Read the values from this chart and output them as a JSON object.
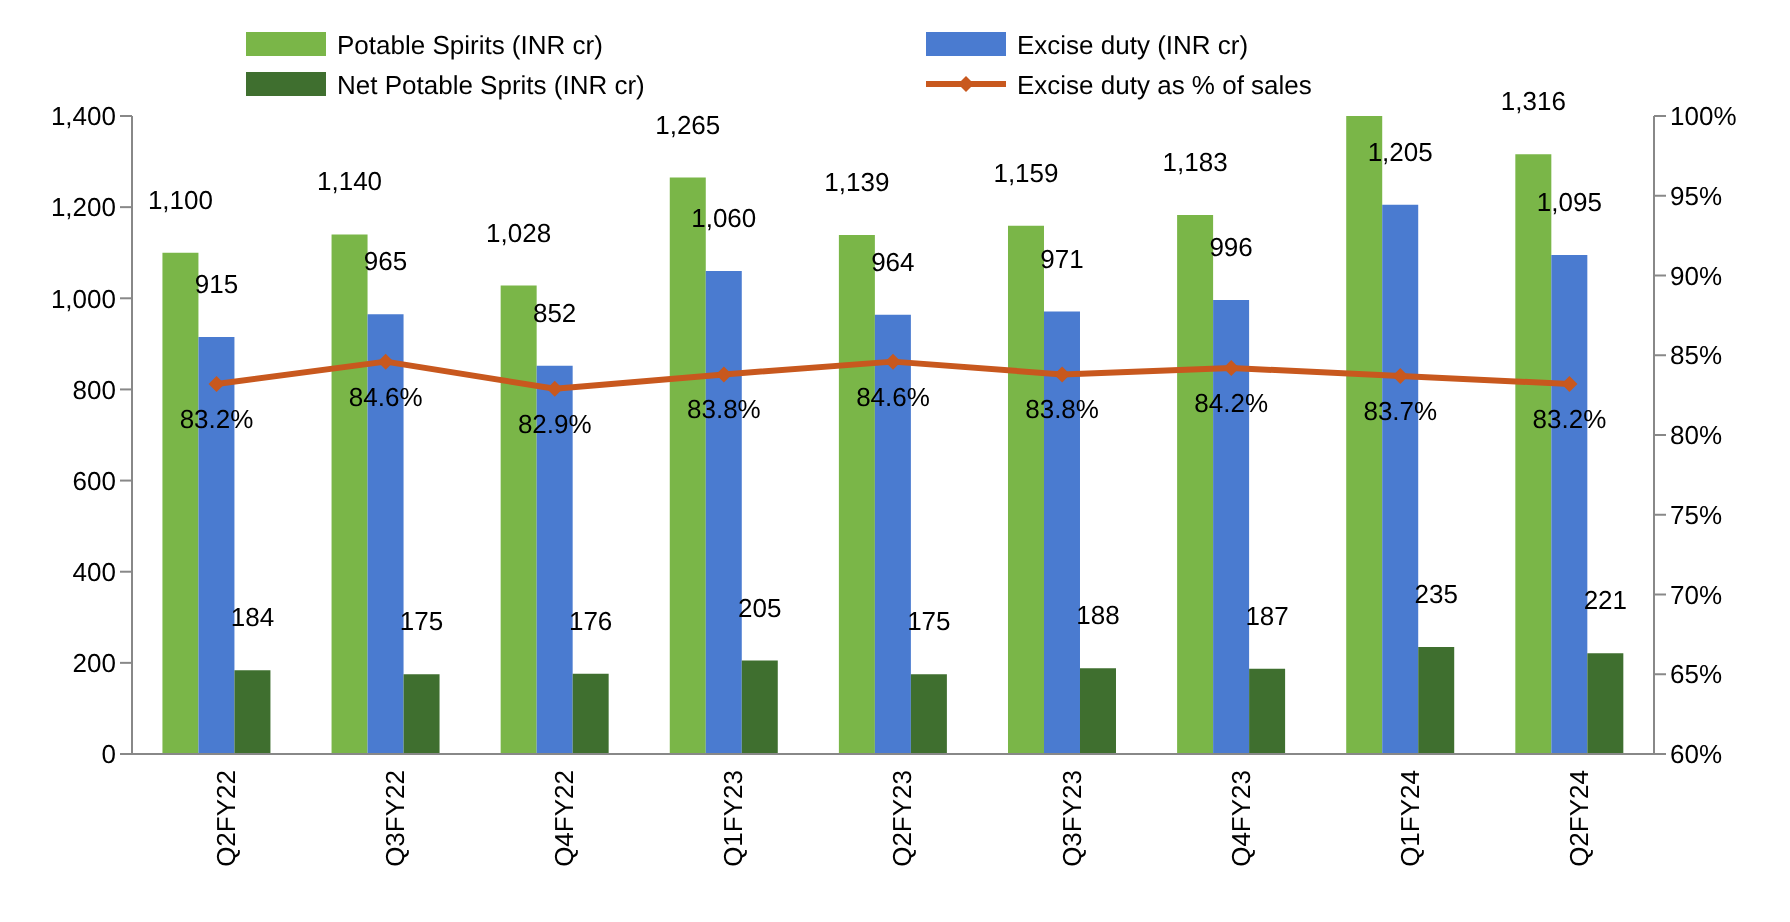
{
  "chart_data": {
    "type": "bar",
    "categories": [
      "Q2FY22",
      "Q3FY22",
      "Q4FY22",
      "Q1FY23",
      "Q2FY23",
      "Q3FY23",
      "Q4FY23",
      "Q1FY24",
      "Q2FY24"
    ],
    "series": [
      {
        "name": "Potable Spirits (INR cr)",
        "color": "#7ab648",
        "values": [
          1100,
          1140,
          1028,
          1265,
          1139,
          1159,
          1183,
          1400,
          1316
        ],
        "value_labels": [
          "1,100",
          "1,140",
          "1,028",
          "1,265",
          "1,139",
          "1,159",
          "1,183",
          null,
          "1,316"
        ]
      },
      {
        "name": "Excise duty (INR cr)",
        "color": "#4a7bd0",
        "values": [
          915,
          965,
          852,
          1060,
          964,
          971,
          996,
          1205,
          1095
        ],
        "value_labels": [
          "915",
          "965",
          "852",
          "1,060",
          "964",
          "971",
          "996",
          "1,205",
          "1,095"
        ]
      },
      {
        "name": "Net Potable Sprits (INR cr)",
        "color": "#3f6f2f",
        "values": [
          184,
          175,
          176,
          205,
          175,
          188,
          187,
          235,
          221
        ],
        "value_labels": [
          "184",
          "175",
          "176",
          "205",
          "175",
          "188",
          "187",
          "235",
          "221"
        ]
      },
      {
        "name": "Excise duty as % of sales",
        "type": "line",
        "axis": "y2",
        "color": "#c8581e",
        "values": [
          83.2,
          84.6,
          82.9,
          83.8,
          84.6,
          83.8,
          84.2,
          83.7,
          83.2
        ],
        "value_labels": [
          "83.2%",
          "84.6%",
          "82.9%",
          "83.8%",
          "84.6%",
          "83.8%",
          "84.2%",
          "83.7%",
          "83.2%"
        ]
      }
    ],
    "ylim": [
      0,
      1400
    ],
    "yticks": [
      0,
      {
        "value": 200,
        "label": "200"
      },
      {
        "value": 400,
        "label": "400"
      },
      {
        "value": 600,
        "label": "600"
      },
      {
        "value": 800,
        "label": "800"
      },
      {
        "value": 1000,
        "label": "1,000"
      },
      {
        "value": 1200,
        "label": "1,200"
      },
      {
        "value": 1400,
        "label": "1,400"
      }
    ],
    "y2lim": [
      60,
      100
    ],
    "y2ticks": [
      {
        "value": 60,
        "label": "60%"
      },
      {
        "value": 65,
        "label": "65%"
      },
      {
        "value": 70,
        "label": "70%"
      },
      {
        "value": 75,
        "label": "75%"
      },
      {
        "value": 80,
        "label": "80%"
      },
      {
        "value": 85,
        "label": "85%"
      },
      {
        "value": 90,
        "label": "90%"
      },
      {
        "value": 95,
        "label": "95%"
      },
      {
        "value": 100,
        "label": "100%"
      }
    ],
    "grid": false,
    "legend": "top",
    "marker": "diamond",
    "line_style": "solid"
  }
}
